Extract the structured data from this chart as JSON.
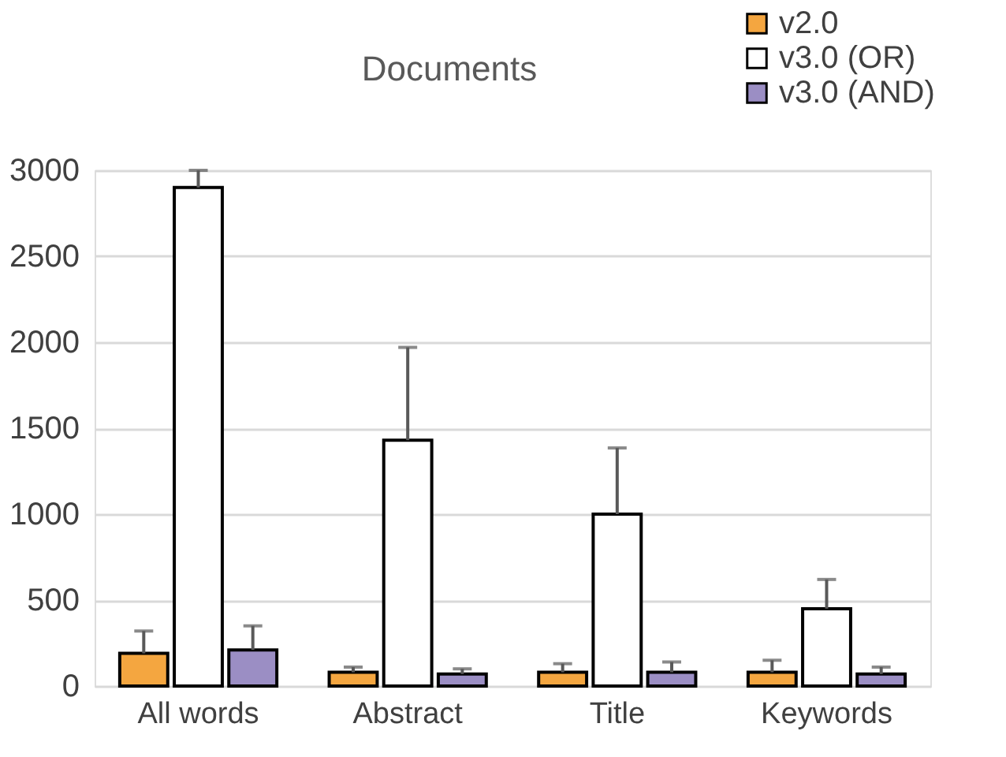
{
  "chart_data": {
    "type": "bar",
    "title": "Documents",
    "categories": [
      "All words",
      "Abstract",
      "Title",
      "Keywords"
    ],
    "series": [
      {
        "name": "v2.0",
        "color": "#f4a640",
        "values": [
          190,
          80,
          80,
          80
        ],
        "errors": [
          [
            190,
            320
          ],
          [
            80,
            110
          ],
          [
            80,
            130
          ],
          [
            80,
            150
          ]
        ]
      },
      {
        "name": "v3.0 (OR)",
        "color": "#ffffff",
        "values": [
          2900,
          1430,
          1000,
          450
        ],
        "errors": [
          [
            2900,
            3000
          ],
          [
            1430,
            1970
          ],
          [
            1000,
            1385
          ],
          [
            450,
            620
          ]
        ]
      },
      {
        "name": "v3.0 (AND)",
        "color": "#9b8ec4",
        "values": [
          210,
          70,
          80,
          70
        ],
        "errors": [
          [
            210,
            350
          ],
          [
            70,
            100
          ],
          [
            80,
            140
          ],
          [
            70,
            110
          ]
        ]
      }
    ],
    "ylim": [
      0,
      3000
    ],
    "yticks": [
      0,
      500,
      1000,
      1500,
      2000,
      2500,
      3000
    ],
    "grid": "y",
    "legend": "top right"
  }
}
